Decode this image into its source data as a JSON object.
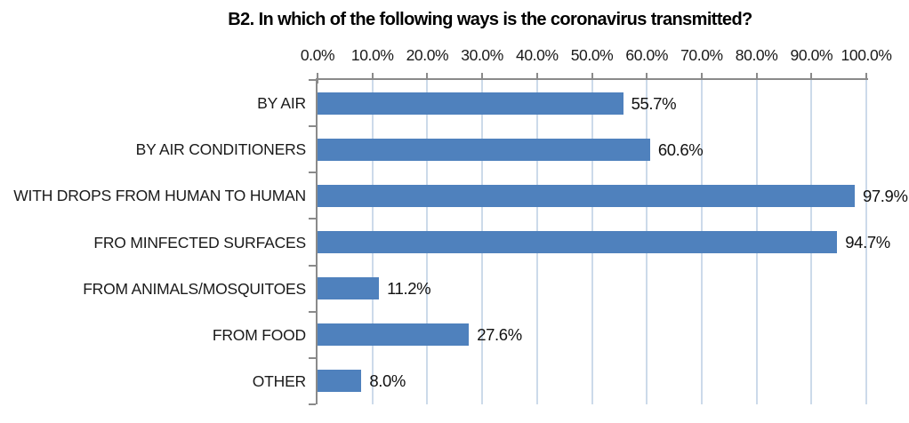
{
  "chart_data": {
    "type": "bar",
    "orientation": "horizontal",
    "title": "B2. In which of the following ways is the coronavirus transmitted?",
    "categories": [
      "BY AIR",
      "BY AIR CONDITIONERS",
      "WITH DROPS FROM HUMAN TO HUMAN",
      "FRO MINFECTED SURFACES",
      "FROM ANIMALS/MOSQUITOES",
      "FROM FOOD",
      "OTHER"
    ],
    "values": [
      55.7,
      60.6,
      97.9,
      94.7,
      11.2,
      27.6,
      8.0
    ],
    "value_labels": [
      "55.7%",
      "60.6%",
      "97.9%",
      "94.7%",
      "11.2%",
      "27.6%",
      "8.0%"
    ],
    "x_axis": {
      "position": "top",
      "min": 0,
      "max": 100,
      "step": 10,
      "tick_labels": [
        "0.0%",
        "10.0%",
        "20.0%",
        "30.0%",
        "40.0%",
        "50.0%",
        "60.0%",
        "70.0%",
        "80.0%",
        "90.0%",
        "100.0%"
      ]
    },
    "grid": true,
    "legend": false,
    "colors": {
      "bar": "#4f81bd",
      "gridline": "#ccdaea",
      "axis": "#8a8a8a",
      "text": "#1a1a1a",
      "background": "#ffffff"
    }
  }
}
